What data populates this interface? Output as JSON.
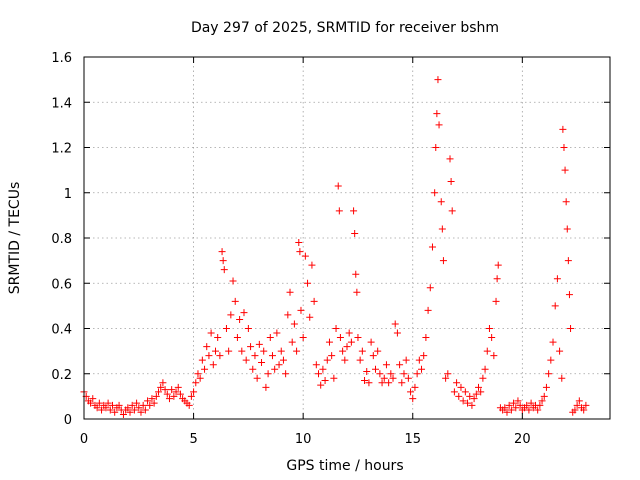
{
  "chart_data": {
    "type": "scatter",
    "title": "Day 297 of 2025, SRMTID for receiver bshm",
    "xlabel": "GPS time / hours",
    "ylabel": "SRMTID / TECUs",
    "xlim": [
      0,
      24
    ],
    "ylim": [
      0,
      1.6
    ],
    "x_ticks": [
      "0",
      "5",
      "10",
      "15",
      "20"
    ],
    "x_tick_values": [
      0,
      5,
      10,
      15,
      20
    ],
    "y_ticks": [
      "0",
      "0.2",
      "0.4",
      "0.6",
      "0.8",
      "1",
      "1.2",
      "1.4",
      "1.6"
    ],
    "y_tick_values": [
      0,
      0.2,
      0.4,
      0.6,
      0.8,
      1.0,
      1.2,
      1.4,
      1.6
    ],
    "grid": true,
    "marker": "+",
    "marker_color": "#ff0000",
    "series": [
      {
        "name": "bshm",
        "points": [
          [
            0.0,
            0.12
          ],
          [
            0.1,
            0.1
          ],
          [
            0.2,
            0.08
          ],
          [
            0.3,
            0.07
          ],
          [
            0.4,
            0.09
          ],
          [
            0.5,
            0.06
          ],
          [
            0.6,
            0.05
          ],
          [
            0.7,
            0.07
          ],
          [
            0.8,
            0.04
          ],
          [
            0.9,
            0.06
          ],
          [
            1.0,
            0.05
          ],
          [
            1.1,
            0.07
          ],
          [
            1.2,
            0.04
          ],
          [
            1.3,
            0.06
          ],
          [
            1.4,
            0.03
          ],
          [
            1.5,
            0.05
          ],
          [
            1.6,
            0.06
          ],
          [
            1.7,
            0.04
          ],
          [
            1.8,
            0.02
          ],
          [
            1.9,
            0.04
          ],
          [
            2.0,
            0.05
          ],
          [
            2.1,
            0.03
          ],
          [
            2.2,
            0.06
          ],
          [
            2.3,
            0.04
          ],
          [
            2.4,
            0.07
          ],
          [
            2.5,
            0.05
          ],
          [
            2.6,
            0.03
          ],
          [
            2.7,
            0.06
          ],
          [
            2.8,
            0.04
          ],
          [
            2.9,
            0.08
          ],
          [
            3.0,
            0.06
          ],
          [
            3.1,
            0.09
          ],
          [
            3.2,
            0.07
          ],
          [
            3.3,
            0.1
          ],
          [
            3.4,
            0.12
          ],
          [
            3.5,
            0.14
          ],
          [
            3.6,
            0.16
          ],
          [
            3.7,
            0.13
          ],
          [
            3.8,
            0.11
          ],
          [
            3.9,
            0.09
          ],
          [
            4.0,
            0.13
          ],
          [
            4.1,
            0.1
          ],
          [
            4.2,
            0.12
          ],
          [
            4.3,
            0.14
          ],
          [
            4.4,
            0.11
          ],
          [
            4.5,
            0.09
          ],
          [
            4.6,
            0.08
          ],
          [
            4.7,
            0.07
          ],
          [
            4.8,
            0.06
          ],
          [
            4.9,
            0.1
          ],
          [
            5.0,
            0.12
          ],
          [
            5.1,
            0.16
          ],
          [
            5.2,
            0.2
          ],
          [
            5.3,
            0.18
          ],
          [
            5.4,
            0.26
          ],
          [
            5.5,
            0.22
          ],
          [
            5.6,
            0.32
          ],
          [
            5.7,
            0.28
          ],
          [
            5.8,
            0.38
          ],
          [
            5.9,
            0.24
          ],
          [
            6.0,
            0.3
          ],
          [
            6.1,
            0.36
          ],
          [
            6.2,
            0.28
          ],
          [
            6.3,
            0.74
          ],
          [
            6.35,
            0.7
          ],
          [
            6.4,
            0.66
          ],
          [
            6.5,
            0.4
          ],
          [
            6.6,
            0.3
          ],
          [
            6.7,
            0.46
          ],
          [
            6.8,
            0.61
          ],
          [
            6.9,
            0.52
          ],
          [
            7.0,
            0.36
          ],
          [
            7.1,
            0.44
          ],
          [
            7.2,
            0.3
          ],
          [
            7.3,
            0.47
          ],
          [
            7.4,
            0.26
          ],
          [
            7.5,
            0.4
          ],
          [
            7.6,
            0.32
          ],
          [
            7.7,
            0.22
          ],
          [
            7.8,
            0.28
          ],
          [
            7.9,
            0.18
          ],
          [
            8.0,
            0.33
          ],
          [
            8.1,
            0.25
          ],
          [
            8.2,
            0.3
          ],
          [
            8.3,
            0.14
          ],
          [
            8.4,
            0.2
          ],
          [
            8.5,
            0.36
          ],
          [
            8.6,
            0.28
          ],
          [
            8.7,
            0.22
          ],
          [
            8.8,
            0.38
          ],
          [
            8.9,
            0.24
          ],
          [
            9.0,
            0.3
          ],
          [
            9.1,
            0.26
          ],
          [
            9.2,
            0.2
          ],
          [
            9.3,
            0.46
          ],
          [
            9.4,
            0.56
          ],
          [
            9.5,
            0.34
          ],
          [
            9.6,
            0.42
          ],
          [
            9.7,
            0.3
          ],
          [
            9.8,
            0.78
          ],
          [
            9.85,
            0.74
          ],
          [
            9.9,
            0.48
          ],
          [
            10.0,
            0.36
          ],
          [
            10.1,
            0.72
          ],
          [
            10.2,
            0.6
          ],
          [
            10.3,
            0.45
          ],
          [
            10.4,
            0.68
          ],
          [
            10.5,
            0.52
          ],
          [
            10.6,
            0.24
          ],
          [
            10.7,
            0.2
          ],
          [
            10.8,
            0.15
          ],
          [
            10.9,
            0.22
          ],
          [
            11.0,
            0.17
          ],
          [
            11.1,
            0.26
          ],
          [
            11.2,
            0.34
          ],
          [
            11.3,
            0.28
          ],
          [
            11.4,
            0.18
          ],
          [
            11.5,
            0.4
          ],
          [
            11.6,
            1.03
          ],
          [
            11.65,
            0.92
          ],
          [
            11.7,
            0.36
          ],
          [
            11.8,
            0.3
          ],
          [
            11.9,
            0.26
          ],
          [
            12.0,
            0.32
          ],
          [
            12.1,
            0.38
          ],
          [
            12.2,
            0.34
          ],
          [
            12.3,
            0.92
          ],
          [
            12.35,
            0.82
          ],
          [
            12.4,
            0.64
          ],
          [
            12.45,
            0.56
          ],
          [
            12.5,
            0.36
          ],
          [
            12.6,
            0.26
          ],
          [
            12.7,
            0.3
          ],
          [
            12.8,
            0.17
          ],
          [
            12.9,
            0.21
          ],
          [
            13.0,
            0.16
          ],
          [
            13.1,
            0.34
          ],
          [
            13.2,
            0.28
          ],
          [
            13.3,
            0.22
          ],
          [
            13.4,
            0.3
          ],
          [
            13.5,
            0.2
          ],
          [
            13.6,
            0.16
          ],
          [
            13.7,
            0.18
          ],
          [
            13.8,
            0.24
          ],
          [
            13.9,
            0.16
          ],
          [
            14.0,
            0.2
          ],
          [
            14.1,
            0.18
          ],
          [
            14.2,
            0.42
          ],
          [
            14.3,
            0.38
          ],
          [
            14.4,
            0.24
          ],
          [
            14.5,
            0.16
          ],
          [
            14.6,
            0.2
          ],
          [
            14.7,
            0.26
          ],
          [
            14.8,
            0.18
          ],
          [
            14.9,
            0.12
          ],
          [
            15.0,
            0.09
          ],
          [
            15.1,
            0.14
          ],
          [
            15.2,
            0.2
          ],
          [
            15.3,
            0.26
          ],
          [
            15.4,
            0.22
          ],
          [
            15.5,
            0.28
          ],
          [
            15.6,
            0.36
          ],
          [
            15.7,
            0.48
          ],
          [
            15.8,
            0.58
          ],
          [
            15.9,
            0.76
          ],
          [
            16.0,
            1.0
          ],
          [
            16.05,
            1.2
          ],
          [
            16.1,
            1.35
          ],
          [
            16.15,
            1.5
          ],
          [
            16.2,
            1.3
          ],
          [
            16.3,
            0.96
          ],
          [
            16.35,
            0.84
          ],
          [
            16.4,
            0.7
          ],
          [
            16.5,
            0.18
          ],
          [
            16.6,
            0.2
          ],
          [
            16.7,
            1.15
          ],
          [
            16.75,
            1.05
          ],
          [
            16.8,
            0.92
          ],
          [
            16.9,
            0.12
          ],
          [
            17.0,
            0.16
          ],
          [
            17.1,
            0.1
          ],
          [
            17.2,
            0.14
          ],
          [
            17.3,
            0.08
          ],
          [
            17.4,
            0.12
          ],
          [
            17.5,
            0.07
          ],
          [
            17.6,
            0.1
          ],
          [
            17.7,
            0.06
          ],
          [
            17.8,
            0.09
          ],
          [
            17.9,
            0.11
          ],
          [
            18.0,
            0.14
          ],
          [
            18.1,
            0.12
          ],
          [
            18.2,
            0.18
          ],
          [
            18.3,
            0.22
          ],
          [
            18.4,
            0.3
          ],
          [
            18.5,
            0.4
          ],
          [
            18.6,
            0.36
          ],
          [
            18.7,
            0.28
          ],
          [
            18.8,
            0.52
          ],
          [
            18.85,
            0.62
          ],
          [
            18.9,
            0.68
          ],
          [
            19.0,
            0.05
          ],
          [
            19.1,
            0.04
          ],
          [
            19.2,
            0.05
          ],
          [
            19.3,
            0.03
          ],
          [
            19.4,
            0.06
          ],
          [
            19.5,
            0.04
          ],
          [
            19.6,
            0.07
          ],
          [
            19.7,
            0.05
          ],
          [
            19.8,
            0.08
          ],
          [
            19.9,
            0.06
          ],
          [
            20.0,
            0.04
          ],
          [
            20.1,
            0.05
          ],
          [
            20.2,
            0.06
          ],
          [
            20.3,
            0.04
          ],
          [
            20.4,
            0.07
          ],
          [
            20.5,
            0.05
          ],
          [
            20.6,
            0.06
          ],
          [
            20.7,
            0.04
          ],
          [
            20.8,
            0.06
          ],
          [
            20.9,
            0.08
          ],
          [
            21.0,
            0.1
          ],
          [
            21.1,
            0.14
          ],
          [
            21.2,
            0.2
          ],
          [
            21.3,
            0.26
          ],
          [
            21.4,
            0.34
          ],
          [
            21.5,
            0.5
          ],
          [
            21.6,
            0.62
          ],
          [
            21.7,
            0.3
          ],
          [
            21.8,
            0.18
          ],
          [
            21.85,
            1.28
          ],
          [
            21.9,
            1.2
          ],
          [
            21.95,
            1.1
          ],
          [
            22.0,
            0.96
          ],
          [
            22.05,
            0.84
          ],
          [
            22.1,
            0.7
          ],
          [
            22.15,
            0.55
          ],
          [
            22.2,
            0.4
          ],
          [
            22.3,
            0.03
          ],
          [
            22.4,
            0.04
          ],
          [
            22.5,
            0.06
          ],
          [
            22.6,
            0.08
          ],
          [
            22.7,
            0.05
          ],
          [
            22.8,
            0.04
          ],
          [
            22.9,
            0.06
          ]
        ]
      }
    ]
  }
}
